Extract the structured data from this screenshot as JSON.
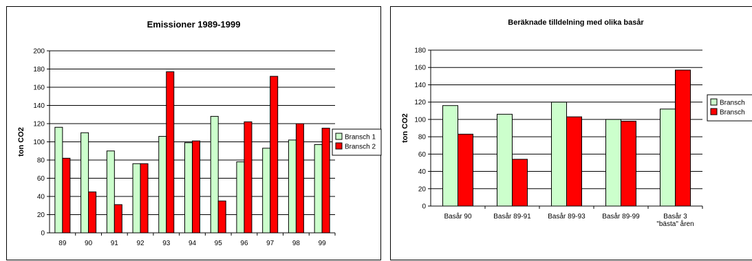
{
  "colors": {
    "series1": "#ccffcc",
    "series2": "#ff0000",
    "grid": "#000000"
  },
  "chart_data": [
    {
      "type": "bar",
      "title": "Emissioner 1989-1999",
      "xlabel": "",
      "ylabel": "ton CO2",
      "ylim": [
        0,
        200
      ],
      "yticks": [
        0,
        20,
        40,
        60,
        80,
        100,
        120,
        140,
        160,
        180,
        200
      ],
      "categories": [
        "89",
        "90",
        "91",
        "92",
        "93",
        "94",
        "95",
        "96",
        "97",
        "98",
        "99"
      ],
      "series": [
        {
          "name": "Bransch 1",
          "values": [
            116,
            110,
            90,
            76,
            106,
            99,
            128,
            78,
            93,
            102,
            97
          ]
        },
        {
          "name": "Bransch 2",
          "values": [
            82,
            45,
            31,
            76,
            177,
            101,
            35,
            122,
            172,
            120,
            115
          ]
        }
      ],
      "grid": true,
      "legend": "right"
    },
    {
      "type": "bar",
      "title": "Beräknade tilldelning med olika basår",
      "xlabel": "",
      "ylabel": "ton CO2",
      "ylim": [
        0,
        180
      ],
      "yticks": [
        0,
        20,
        40,
        60,
        80,
        100,
        120,
        140,
        160,
        180
      ],
      "categories": [
        [
          "Basår 90"
        ],
        [
          "Basår 89-91"
        ],
        [
          "Basår 89-93"
        ],
        [
          "Basår 89-99"
        ],
        [
          "Basår 3",
          "\"bästa\" åren"
        ]
      ],
      "series": [
        {
          "name": "Bransch",
          "values": [
            116,
            106,
            120,
            100,
            112
          ]
        },
        {
          "name": "Bransch",
          "values": [
            83,
            54,
            103,
            98,
            157
          ]
        }
      ],
      "grid": true,
      "legend": "right"
    }
  ]
}
